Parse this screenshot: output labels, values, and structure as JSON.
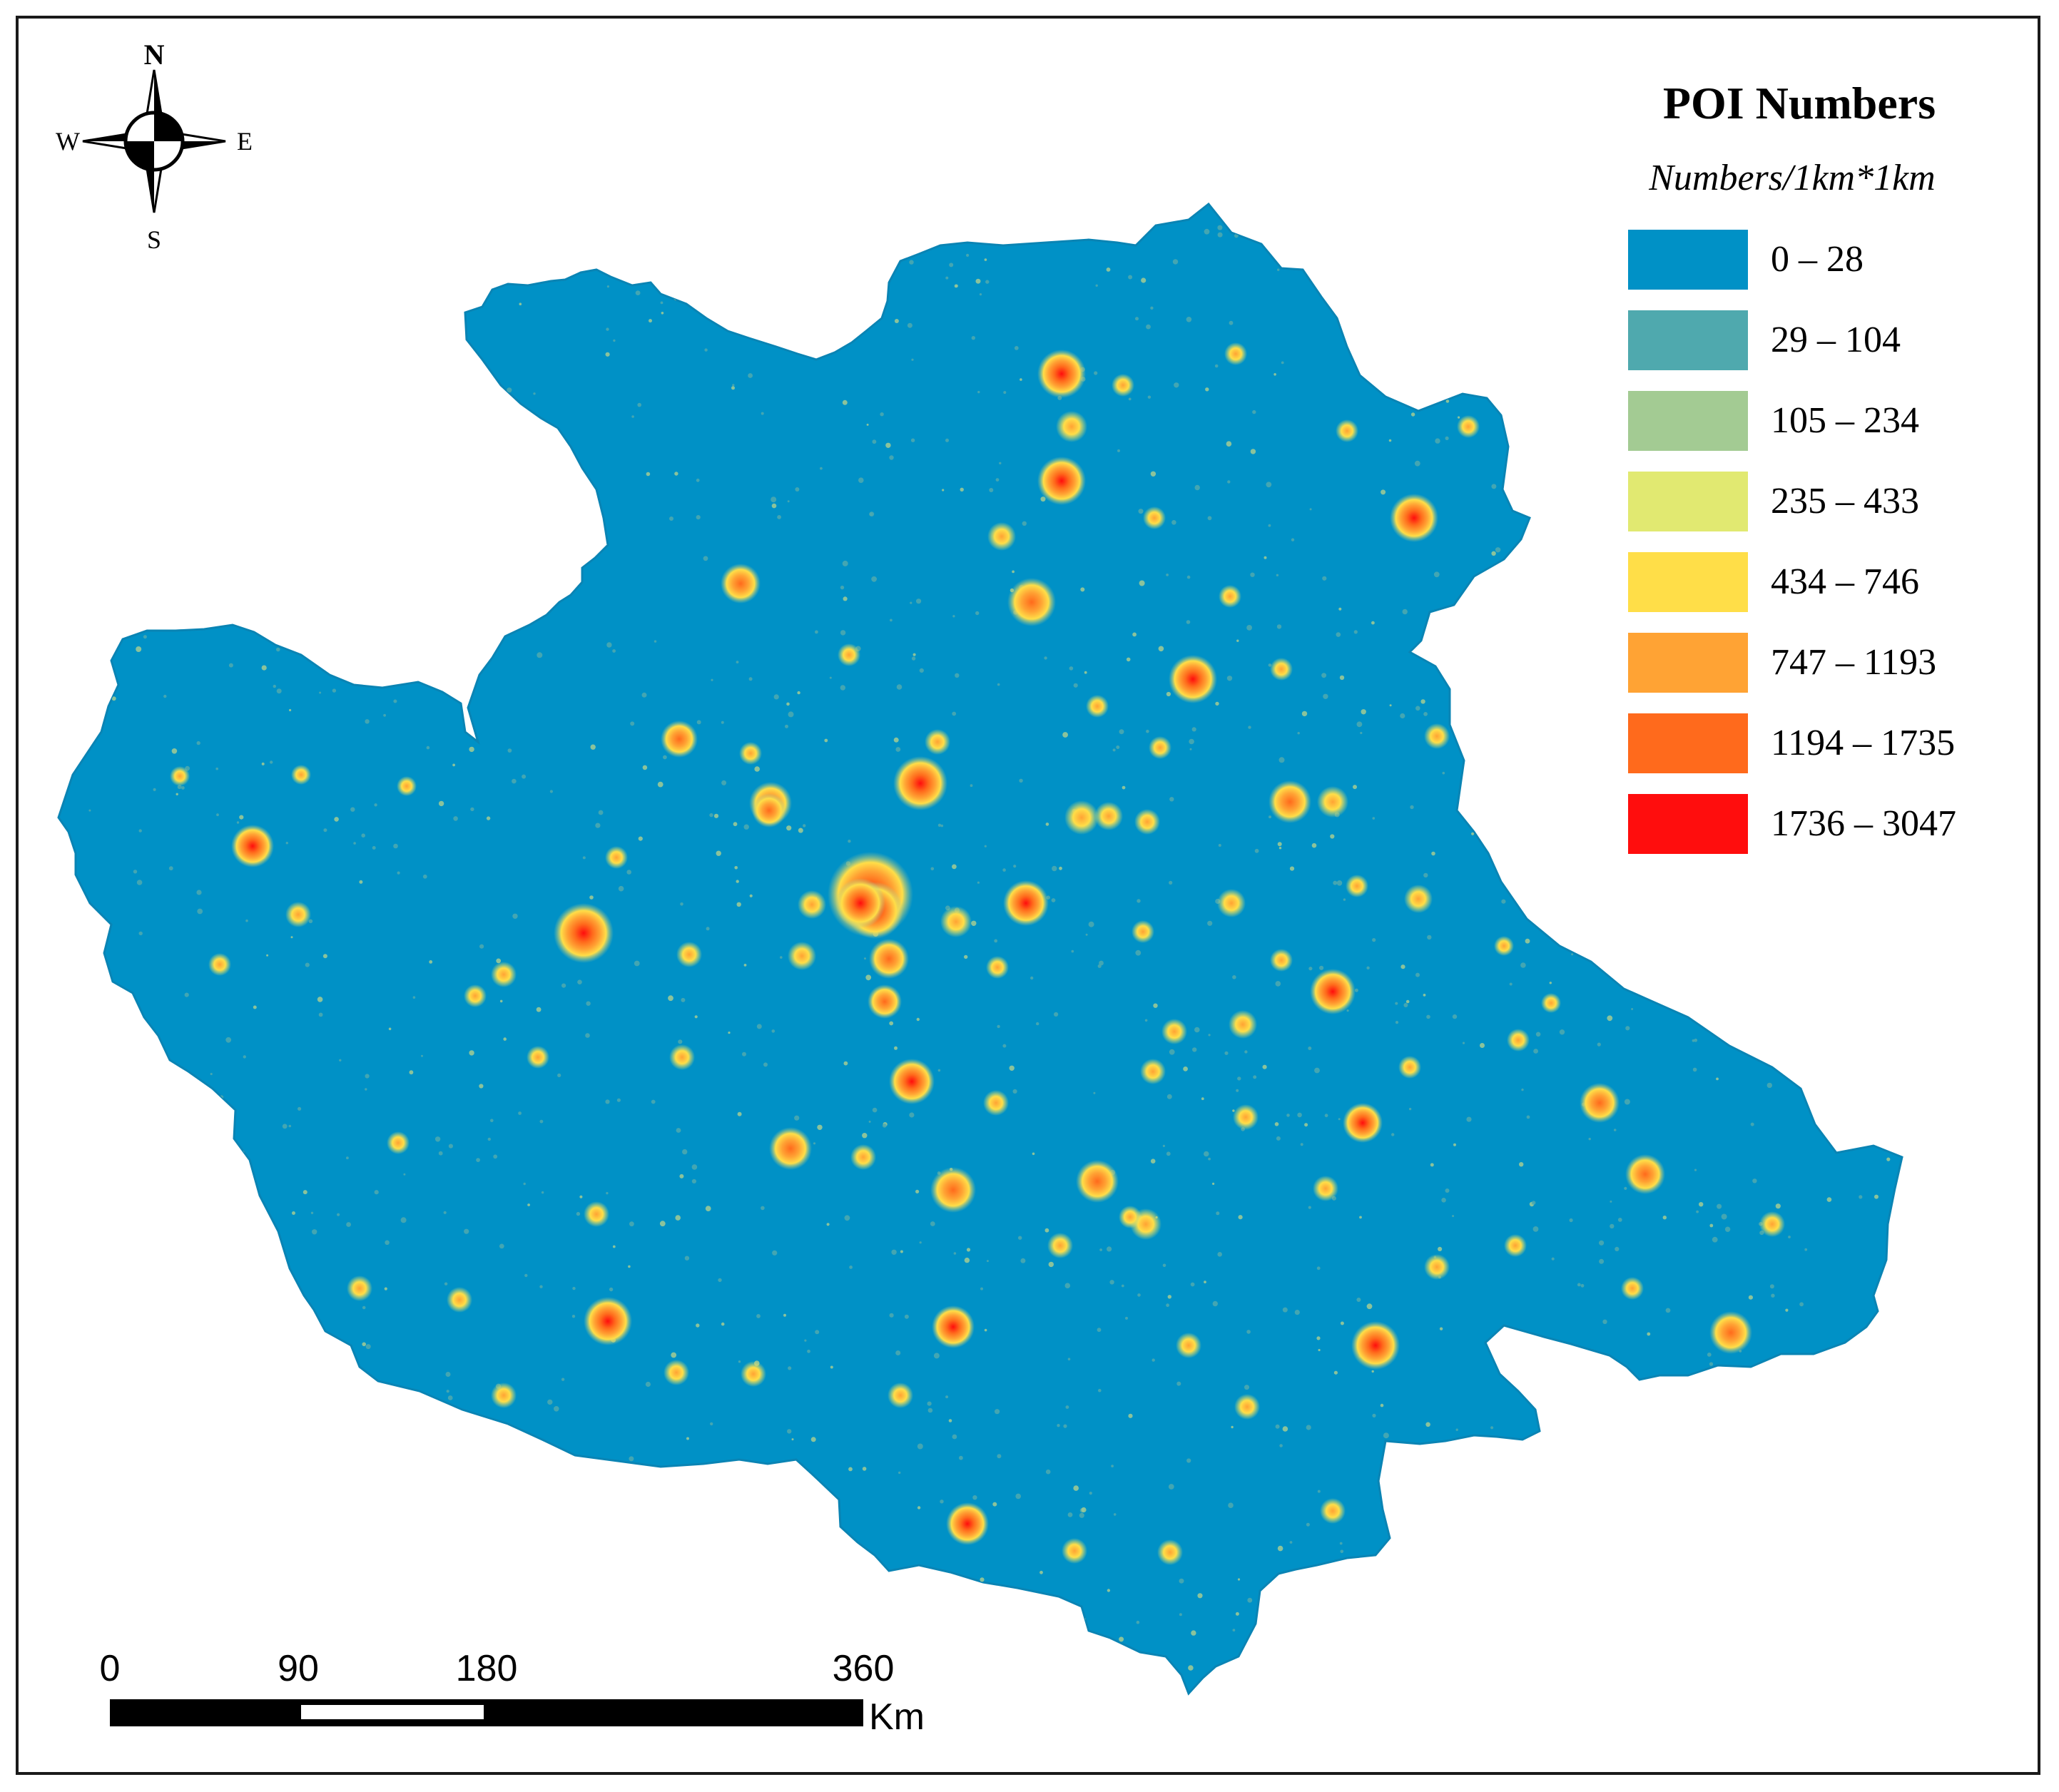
{
  "legend": {
    "title": "POI Numbers",
    "subtitle": "Numbers/1km*1km",
    "classes": [
      {
        "label": "0 – 28",
        "color": "#0091c6"
      },
      {
        "label": "29 – 104",
        "color": "#4fa9ae"
      },
      {
        "label": "105 – 234",
        "color": "#a3cb93"
      },
      {
        "label": "235 – 433",
        "color": "#e1e971"
      },
      {
        "label": "434 – 746",
        "color": "#ffde48"
      },
      {
        "label": "747 – 1193",
        "color": "#ffa334"
      },
      {
        "label": "1194 – 1735",
        "color": "#ff6a1c"
      },
      {
        "label": "1736 – 3047",
        "color": "#ff0d0d"
      }
    ]
  },
  "compass": {
    "north": "N",
    "south": "S",
    "east": "E",
    "west": "W",
    "icon": "north-arrow-compass-icon"
  },
  "scale_bar": {
    "ticks": [
      "0",
      "90",
      "180",
      "360"
    ],
    "unit": "Km"
  },
  "colors": {
    "background": "#ffffff",
    "frame": "#1a1a1a"
  }
}
